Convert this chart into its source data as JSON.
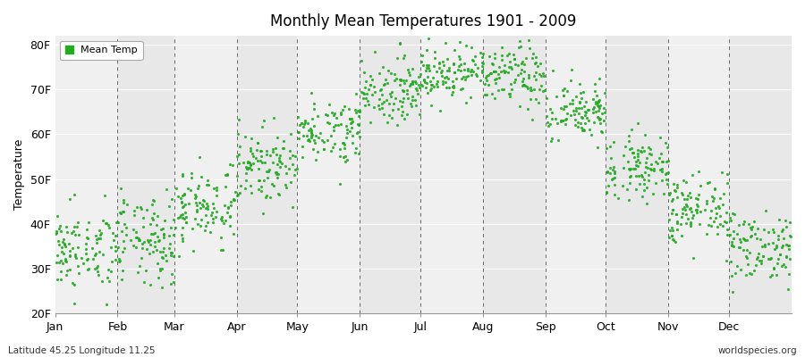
{
  "title": "Monthly Mean Temperatures 1901 - 2009",
  "ylabel": "Temperature",
  "lat_lon_label": "Latitude 45.25 Longitude 11.25",
  "source_label": "worldspecies.org",
  "legend_label": "Mean Temp",
  "yticks": [
    20,
    30,
    40,
    50,
    60,
    70,
    80
  ],
  "ytick_labels": [
    "20F",
    "30F",
    "40F",
    "50F",
    "60F",
    "70F",
    "80F"
  ],
  "ylim": [
    20,
    82
  ],
  "months": [
    "Jan",
    "Feb",
    "Mar",
    "Apr",
    "May",
    "Jun",
    "Jul",
    "Aug",
    "Sep",
    "Oct",
    "Nov",
    "Dec"
  ],
  "month_days": [
    31,
    28,
    31,
    30,
    31,
    30,
    31,
    31,
    30,
    31,
    30,
    31
  ],
  "monthly_means_F": [
    34.0,
    36.0,
    44.0,
    53.0,
    61.0,
    70.0,
    74.0,
    73.0,
    65.0,
    53.0,
    43.0,
    35.0
  ],
  "monthly_stds_F": [
    4.5,
    5.0,
    4.5,
    4.0,
    3.5,
    3.5,
    3.0,
    3.5,
    3.5,
    3.5,
    4.0,
    4.0
  ],
  "n_years": 109,
  "dot_color": "#22aa22",
  "bg_color_light": "#f0f0f0",
  "bg_color_dark": "#e8e8e8",
  "dashed_line_color": "#666666",
  "figsize": [
    9.0,
    4.0
  ],
  "dpi": 100,
  "seed": 42
}
